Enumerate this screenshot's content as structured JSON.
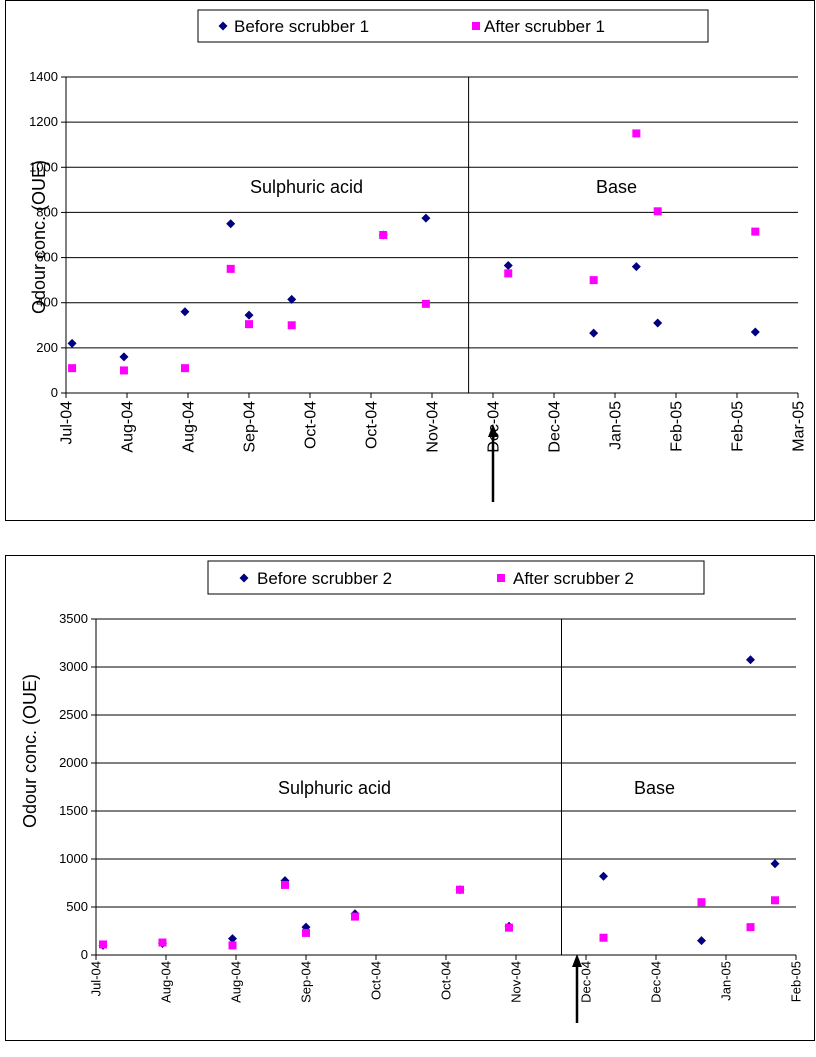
{
  "colors": {
    "before": "#000080",
    "after": "#ff00ff",
    "grid": "#000000",
    "background": "#ffffff"
  },
  "chart_data": [
    {
      "type": "scatter",
      "ylabel": "Odour conc. (OUE)",
      "ylim": [
        0,
        1400
      ],
      "y_ticks": [
        0,
        200,
        400,
        600,
        800,
        1000,
        1200,
        1400
      ],
      "x_tick_labels": [
        "Jul-04",
        "Aug-04",
        "Aug-04",
        "Sep-04",
        "Oct-04",
        "Oct-04",
        "Nov-04",
        "Dec-04",
        "Dec-04",
        "Jan-05",
        "Feb-05",
        "Feb-05",
        "Mar-05"
      ],
      "xlim": [
        0,
        12
      ],
      "grid": "horizontal",
      "legend_position": "top",
      "divider_x": 6.6,
      "annotations": [
        "Sulphuric acid",
        "Base"
      ],
      "series": [
        {
          "name": "Before scrubber 1",
          "marker": "diamond",
          "x": [
            0.1,
            0.95,
            1.95,
            2.7,
            3.0,
            3.7,
            5.2,
            5.9,
            7.25,
            8.65,
            9.35,
            9.7,
            11.3
          ],
          "y": [
            220,
            160,
            360,
            750,
            345,
            415,
            700,
            775,
            565,
            265,
            560,
            310,
            270
          ]
        },
        {
          "name": "After scrubber 1",
          "marker": "square",
          "x": [
            0.1,
            0.95,
            1.95,
            2.7,
            3.0,
            3.7,
            5.2,
            5.9,
            7.25,
            8.65,
            9.35,
            9.7,
            11.3
          ],
          "y": [
            110,
            100,
            110,
            550,
            305,
            300,
            700,
            395,
            530,
            500,
            1150,
            805,
            715
          ]
        }
      ]
    },
    {
      "type": "scatter",
      "ylabel": "Odour conc. (OUE)",
      "ylim": [
        0,
        3500
      ],
      "y_ticks": [
        0,
        500,
        1000,
        1500,
        2000,
        2500,
        3000,
        3500
      ],
      "x_tick_labels": [
        "Jul-04",
        "Aug-04",
        "Aug-04",
        "Sep-04",
        "Oct-04",
        "Oct-04",
        "Nov-04",
        "Dec-04",
        "Dec-04",
        "Jan-05",
        "Feb-05"
      ],
      "xlim": [
        0,
        10
      ],
      "grid": "horizontal",
      "legend_position": "top",
      "divider_x": 6.65,
      "annotations": [
        "Sulphuric acid",
        "Base"
      ],
      "series": [
        {
          "name": "Before scrubber 2",
          "marker": "diamond",
          "x": [
            0.1,
            0.95,
            1.95,
            2.7,
            3.0,
            3.7,
            5.2,
            5.9,
            7.25,
            8.65,
            9.35,
            9.7
          ],
          "y": [
            100,
            120,
            170,
            775,
            290,
            430,
            680,
            300,
            820,
            150,
            3075,
            950
          ]
        },
        {
          "name": "After scrubber 2",
          "marker": "square",
          "x": [
            0.1,
            0.95,
            1.95,
            2.7,
            3.0,
            3.7,
            5.2,
            5.9,
            7.25,
            8.65,
            9.35,
            9.7
          ],
          "y": [
            110,
            130,
            100,
            730,
            230,
            400,
            680,
            285,
            180,
            550,
            290,
            570
          ]
        }
      ]
    }
  ]
}
